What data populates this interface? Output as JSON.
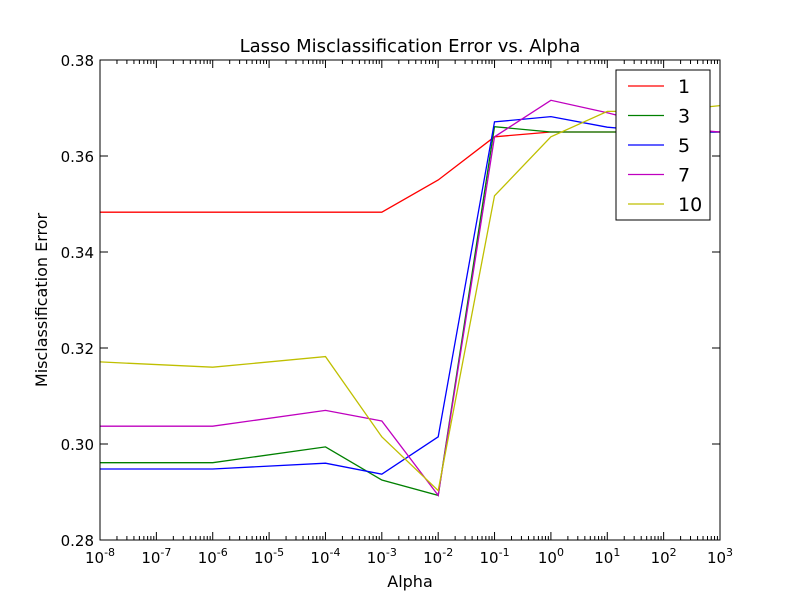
{
  "chart_data": {
    "type": "line",
    "title": "Lasso Misclassification Error vs. Alpha",
    "xlabel": "Alpha",
    "ylabel": "Misclassification Error",
    "xscale": "log",
    "xlim": [
      1e-08,
      1000
    ],
    "ylim": [
      0.28,
      0.38
    ],
    "grid": false,
    "legend_position": "top-right",
    "x_ticks": [
      {
        "base": "10",
        "exp": "-8",
        "value": 1e-08
      },
      {
        "base": "10",
        "exp": "-7",
        "value": 1e-07
      },
      {
        "base": "10",
        "exp": "-6",
        "value": 1e-06
      },
      {
        "base": "10",
        "exp": "-5",
        "value": 1e-05
      },
      {
        "base": "10",
        "exp": "-4",
        "value": 0.0001
      },
      {
        "base": "10",
        "exp": "-3",
        "value": 0.001
      },
      {
        "base": "10",
        "exp": "-2",
        "value": 0.01
      },
      {
        "base": "10",
        "exp": "-1",
        "value": 0.1
      },
      {
        "base": "10",
        "exp": "0",
        "value": 1
      },
      {
        "base": "10",
        "exp": "1",
        "value": 10
      },
      {
        "base": "10",
        "exp": "2",
        "value": 100
      },
      {
        "base": "10",
        "exp": "3",
        "value": 1000
      }
    ],
    "y_ticks": [
      {
        "label": "0.28",
        "value": 0.28
      },
      {
        "label": "0.30",
        "value": 0.3
      },
      {
        "label": "0.32",
        "value": 0.32
      },
      {
        "label": "0.34",
        "value": 0.34
      },
      {
        "label": "0.36",
        "value": 0.36
      },
      {
        "label": "0.38",
        "value": 0.38
      }
    ],
    "x": [
      1e-08,
      1e-06,
      0.0001,
      0.001,
      0.01,
      0.1,
      1,
      10,
      100,
      1000
    ],
    "series": [
      {
        "name": "1",
        "color": "#ff0000",
        "values": [
          0.3483,
          0.3483,
          0.3483,
          0.3483,
          0.355,
          0.364,
          0.365,
          0.365,
          0.365,
          0.365
        ]
      },
      {
        "name": "3",
        "color": "#008000",
        "values": [
          0.2961,
          0.2961,
          0.2994,
          0.2925,
          0.2893,
          0.3661,
          0.365,
          0.365,
          0.365,
          0.365
        ]
      },
      {
        "name": "5",
        "color": "#0000ff",
        "values": [
          0.2948,
          0.2948,
          0.296,
          0.2937,
          0.3015,
          0.3671,
          0.3682,
          0.366,
          0.365,
          0.365
        ]
      },
      {
        "name": "7",
        "color": "#bf00bf",
        "values": [
          0.3037,
          0.3037,
          0.307,
          0.3048,
          0.2893,
          0.364,
          0.3716,
          0.369,
          0.366,
          0.365
        ]
      },
      {
        "name": "10",
        "color": "#bfbf00",
        "values": [
          0.3171,
          0.316,
          0.3182,
          0.3015,
          0.2903,
          0.3517,
          0.364,
          0.3693,
          0.3693,
          0.3705
        ]
      }
    ]
  }
}
